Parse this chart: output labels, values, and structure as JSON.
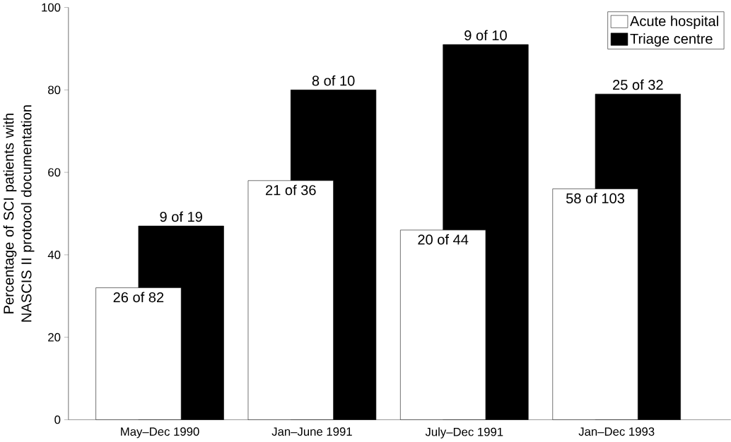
{
  "chart_data": {
    "type": "bar",
    "ylabel": "Percentage of SCI patients with NASCIS II protocol documentation",
    "categories": [
      "May–Dec 1990",
      "Jan–June 1991",
      "July–Dec 1991",
      "Jan–Dec 1993"
    ],
    "series": [
      {
        "name": "Acute hospital",
        "color": "#ffffff",
        "values": [
          32,
          58,
          46,
          56
        ]
      },
      {
        "name": "Triage centre",
        "color": "#000000",
        "values": [
          47,
          80,
          91,
          79
        ]
      }
    ],
    "annotations": [
      {
        "text": "26 of 82",
        "x": "May–Dec 1990",
        "y": 32
      },
      {
        "text": "21 of 36",
        "x": "Jan–June 1991",
        "y": 58
      },
      {
        "text": "20 of 44",
        "x": "July–Dec 1991",
        "y": 46
      },
      {
        "text": "58 of 103",
        "x": "Jan–Dec 1993",
        "y": 56
      },
      {
        "text": "9 of 19",
        "x": "May–Dec 1990",
        "y": 47
      },
      {
        "text": "8 of 10",
        "x": "Jan–June 1991",
        "y": 80
      },
      {
        "text": "9 of 10",
        "x": "July–Dec 1991",
        "y": 91
      },
      {
        "text": "25 of 32",
        "x": "Jan–Dec 1993",
        "y": 79
      }
    ],
    "ylim": [
      0,
      100
    ],
    "yticks": [
      0,
      20,
      40,
      60,
      80,
      100
    ],
    "grid": false,
    "legend": "top right"
  }
}
